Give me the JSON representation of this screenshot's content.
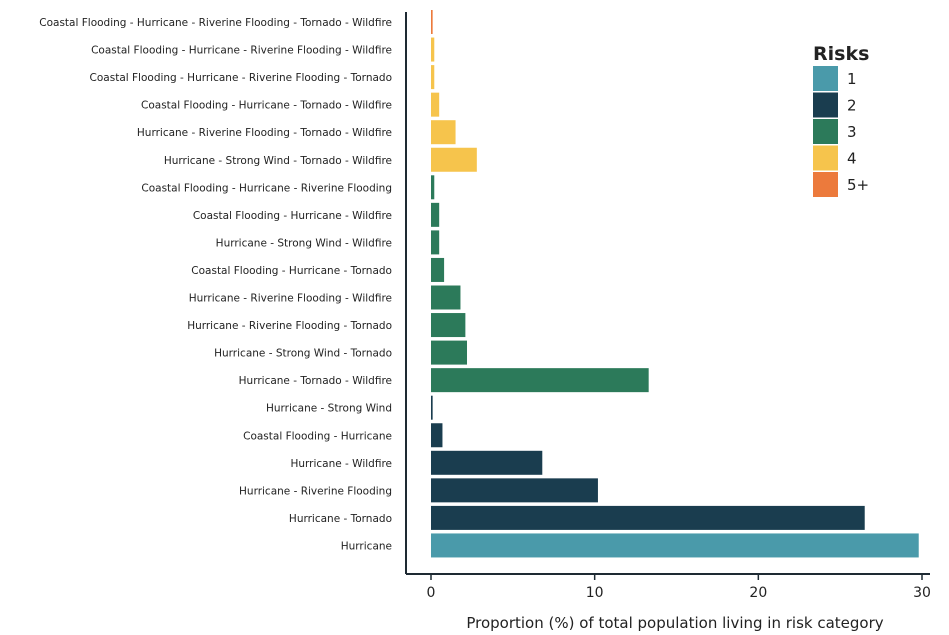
{
  "chart_data": {
    "type": "bar",
    "orientation": "horizontal",
    "categories": [
      "Hurricane",
      "Hurricane - Tornado",
      "Hurricane - Riverine Flooding",
      "Hurricane - Wildfire",
      "Coastal Flooding - Hurricane",
      "Hurricane - Strong Wind",
      "Hurricane - Tornado - Wildfire",
      "Hurricane - Strong Wind - Tornado",
      "Hurricane - Riverine Flooding - Tornado",
      "Hurricane - Riverine Flooding - Wildfire",
      "Coastal Flooding - Hurricane - Tornado",
      "Hurricane - Strong Wind - Wildfire",
      "Coastal Flooding - Hurricane - Wildfire",
      "Coastal Flooding - Hurricane - Riverine Flooding",
      "Hurricane - Strong Wind - Tornado - Wildfire",
      "Hurricane - Riverine Flooding - Tornado - Wildfire",
      "Coastal Flooding - Hurricane - Tornado - Wildfire",
      "Coastal Flooding - Hurricane - Riverine Flooding - Tornado",
      "Coastal Flooding - Hurricane - Riverine Flooding - Wildfire",
      "Coastal Flooding - Hurricane - Riverine Flooding - Tornado - Wildfire"
    ],
    "values": [
      29.8,
      26.5,
      10.2,
      6.8,
      0.7,
      0.1,
      13.3,
      2.2,
      2.1,
      1.8,
      0.8,
      0.5,
      0.5,
      0.2,
      2.8,
      1.5,
      0.5,
      0.2,
      0.2,
      0.1
    ],
    "risk_groups": [
      "1",
      "2",
      "2",
      "2",
      "2",
      "2",
      "3",
      "3",
      "3",
      "3",
      "3",
      "3",
      "3",
      "3",
      "4",
      "4",
      "4",
      "4",
      "4",
      "5+"
    ],
    "xlabel": "Proportion (%) of total population living in risk category",
    "ylabel": "",
    "xlim": [
      0,
      30
    ],
    "xticks": [
      0,
      10,
      20,
      30
    ],
    "grid": false,
    "legend": {
      "title": "Risks",
      "placement": "top-right",
      "entries": [
        {
          "label": "1",
          "color": "#4a9aaa"
        },
        {
          "label": "2",
          "color": "#1a3d4f"
        },
        {
          "label": "3",
          "color": "#2c7a5a"
        },
        {
          "label": "4",
          "color": "#f6c44c"
        },
        {
          "label": "5+",
          "color": "#ec7a3c"
        }
      ]
    }
  }
}
